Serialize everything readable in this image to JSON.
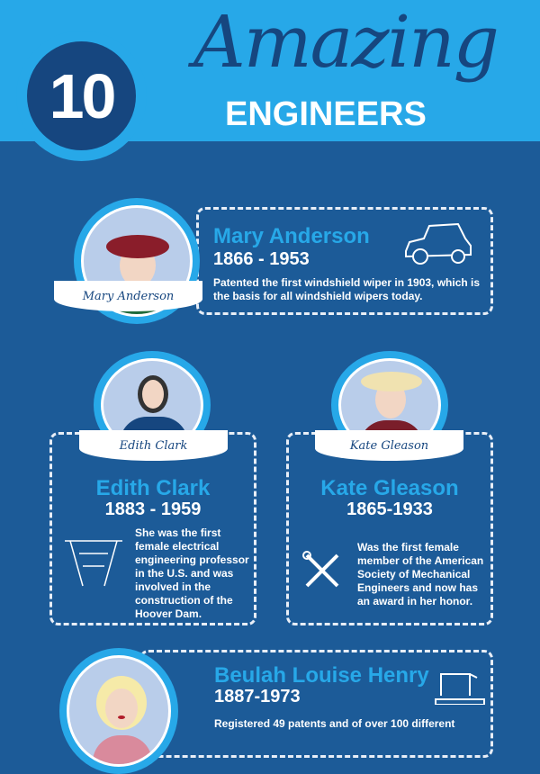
{
  "header": {
    "number": "10",
    "title_script": "Amazing",
    "title": "ENGINEERS"
  },
  "colors": {
    "header": "#27a8e8",
    "background": "#1c5b98",
    "navy": "#16467f"
  },
  "engineers": [
    {
      "ribbon": "Mary Anderson",
      "name": "Mary Anderson",
      "years": "1866 - 1953",
      "description": "Patented the first windshield wiper in 1903, which is the basis for all windshield wipers today.",
      "icon": "car-icon"
    },
    {
      "ribbon": "Edith Clark",
      "name": "Edith Clark",
      "years": "1883 - 1959",
      "description": "She was the first female electrical engineering professor in the U.S. and was involved in the construction of the Hoover Dam.",
      "icon": "dam-icon"
    },
    {
      "ribbon": "Kate Gleason",
      "name": "Kate Gleason",
      "years": "1865-1933",
      "description": "Was the first female member of the American Society of Mechanical Engineers and now has an award in her honor.",
      "icon": "tools-icon"
    },
    {
      "name": "Beulah Louise Henry",
      "years": "1887-1973",
      "description": "Registered 49 patents and of over 100 different",
      "icon": "sewing-machine-icon"
    }
  ]
}
